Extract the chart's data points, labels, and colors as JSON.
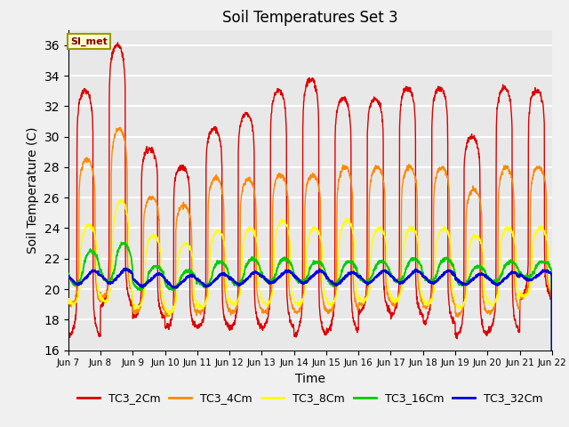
{
  "title": "Soil Temperatures Set 3",
  "xlabel": "Time",
  "ylabel": "Soil Temperature (C)",
  "ylim": [
    16,
    37
  ],
  "yticks": [
    16,
    18,
    20,
    22,
    24,
    26,
    28,
    30,
    32,
    34,
    36
  ],
  "colors": {
    "TC3_2Cm": "#dd0000",
    "TC3_4Cm": "#ff8800",
    "TC3_8Cm": "#ffff00",
    "TC3_16Cm": "#00cc00",
    "TC3_32Cm": "#0000dd"
  },
  "annotation_text": "SI_met",
  "fig_bg": "#f0f0f0",
  "plot_bg": "#e8e8e8",
  "x_tick_labels": [
    "Jun 7",
    "Jun 8",
    "Jun 9",
    "Jun 10",
    "Jun 11",
    "Jun 12",
    "Jun 13",
    "Jun 14",
    "Jun 15",
    "Jun 16",
    "Jun 17",
    "Jun 18",
    "Jun 19",
    "Jun 20",
    "Jun 21",
    "Jun 22"
  ],
  "n_days": 15,
  "ppd": 144,
  "peak_2cm": [
    33.0,
    36.0,
    29.2,
    28.0,
    30.5,
    31.5,
    33.0,
    33.8,
    32.5,
    32.5,
    33.2,
    33.2,
    30.0,
    33.2,
    33.0
  ],
  "trough_2cm": [
    17.0,
    19.0,
    18.2,
    17.5,
    17.5,
    17.5,
    17.5,
    17.0,
    17.3,
    18.5,
    18.3,
    17.8,
    17.0,
    17.3,
    19.5
  ],
  "peak_4cm": [
    28.5,
    30.5,
    26.0,
    25.5,
    27.3,
    27.2,
    27.5,
    27.5,
    28.0,
    28.0,
    28.0,
    28.0,
    26.5,
    28.0,
    28.0
  ],
  "trough_4cm": [
    19.0,
    19.5,
    18.5,
    18.3,
    18.5,
    18.5,
    18.5,
    18.5,
    18.5,
    19.0,
    19.0,
    18.8,
    18.3,
    18.5,
    19.5
  ],
  "peak_8cm": [
    24.2,
    25.8,
    23.5,
    23.0,
    23.8,
    24.0,
    24.5,
    24.0,
    24.5,
    24.0,
    24.0,
    24.0,
    23.5,
    24.0,
    24.0
  ],
  "trough_8cm": [
    19.0,
    19.2,
    18.8,
    18.5,
    18.8,
    19.0,
    19.0,
    19.0,
    19.0,
    19.2,
    19.2,
    19.0,
    18.8,
    19.0,
    19.5
  ],
  "peak_16cm": [
    22.5,
    23.0,
    21.5,
    21.2,
    21.8,
    22.0,
    22.0,
    21.8,
    21.8,
    21.8,
    22.0,
    22.0,
    21.5,
    21.8,
    21.8
  ],
  "trough_16cm": [
    20.3,
    20.5,
    20.0,
    20.0,
    20.2,
    20.3,
    20.5,
    20.5,
    20.3,
    20.5,
    20.5,
    20.5,
    20.3,
    20.5,
    20.8
  ],
  "peak_32cm": [
    21.2,
    21.3,
    21.0,
    20.9,
    21.0,
    21.1,
    21.2,
    21.2,
    21.1,
    21.2,
    21.2,
    21.2,
    21.0,
    21.1,
    21.2
  ],
  "trough_32cm": [
    20.3,
    20.4,
    20.2,
    20.1,
    20.2,
    20.3,
    20.4,
    20.4,
    20.3,
    20.4,
    20.4,
    20.4,
    20.3,
    20.3,
    20.6
  ],
  "peak_time_2cm": 0.52,
  "peak_time_4cm": 0.58,
  "peak_time_8cm": 0.64,
  "peak_time_16cm": 0.72,
  "peak_time_32cm": 0.8,
  "sharpness_2cm": 8.0,
  "sharpness_4cm": 5.0,
  "sharpness_8cm": 3.0,
  "sharpness_16cm": 1.5,
  "sharpness_32cm": 0.8
}
